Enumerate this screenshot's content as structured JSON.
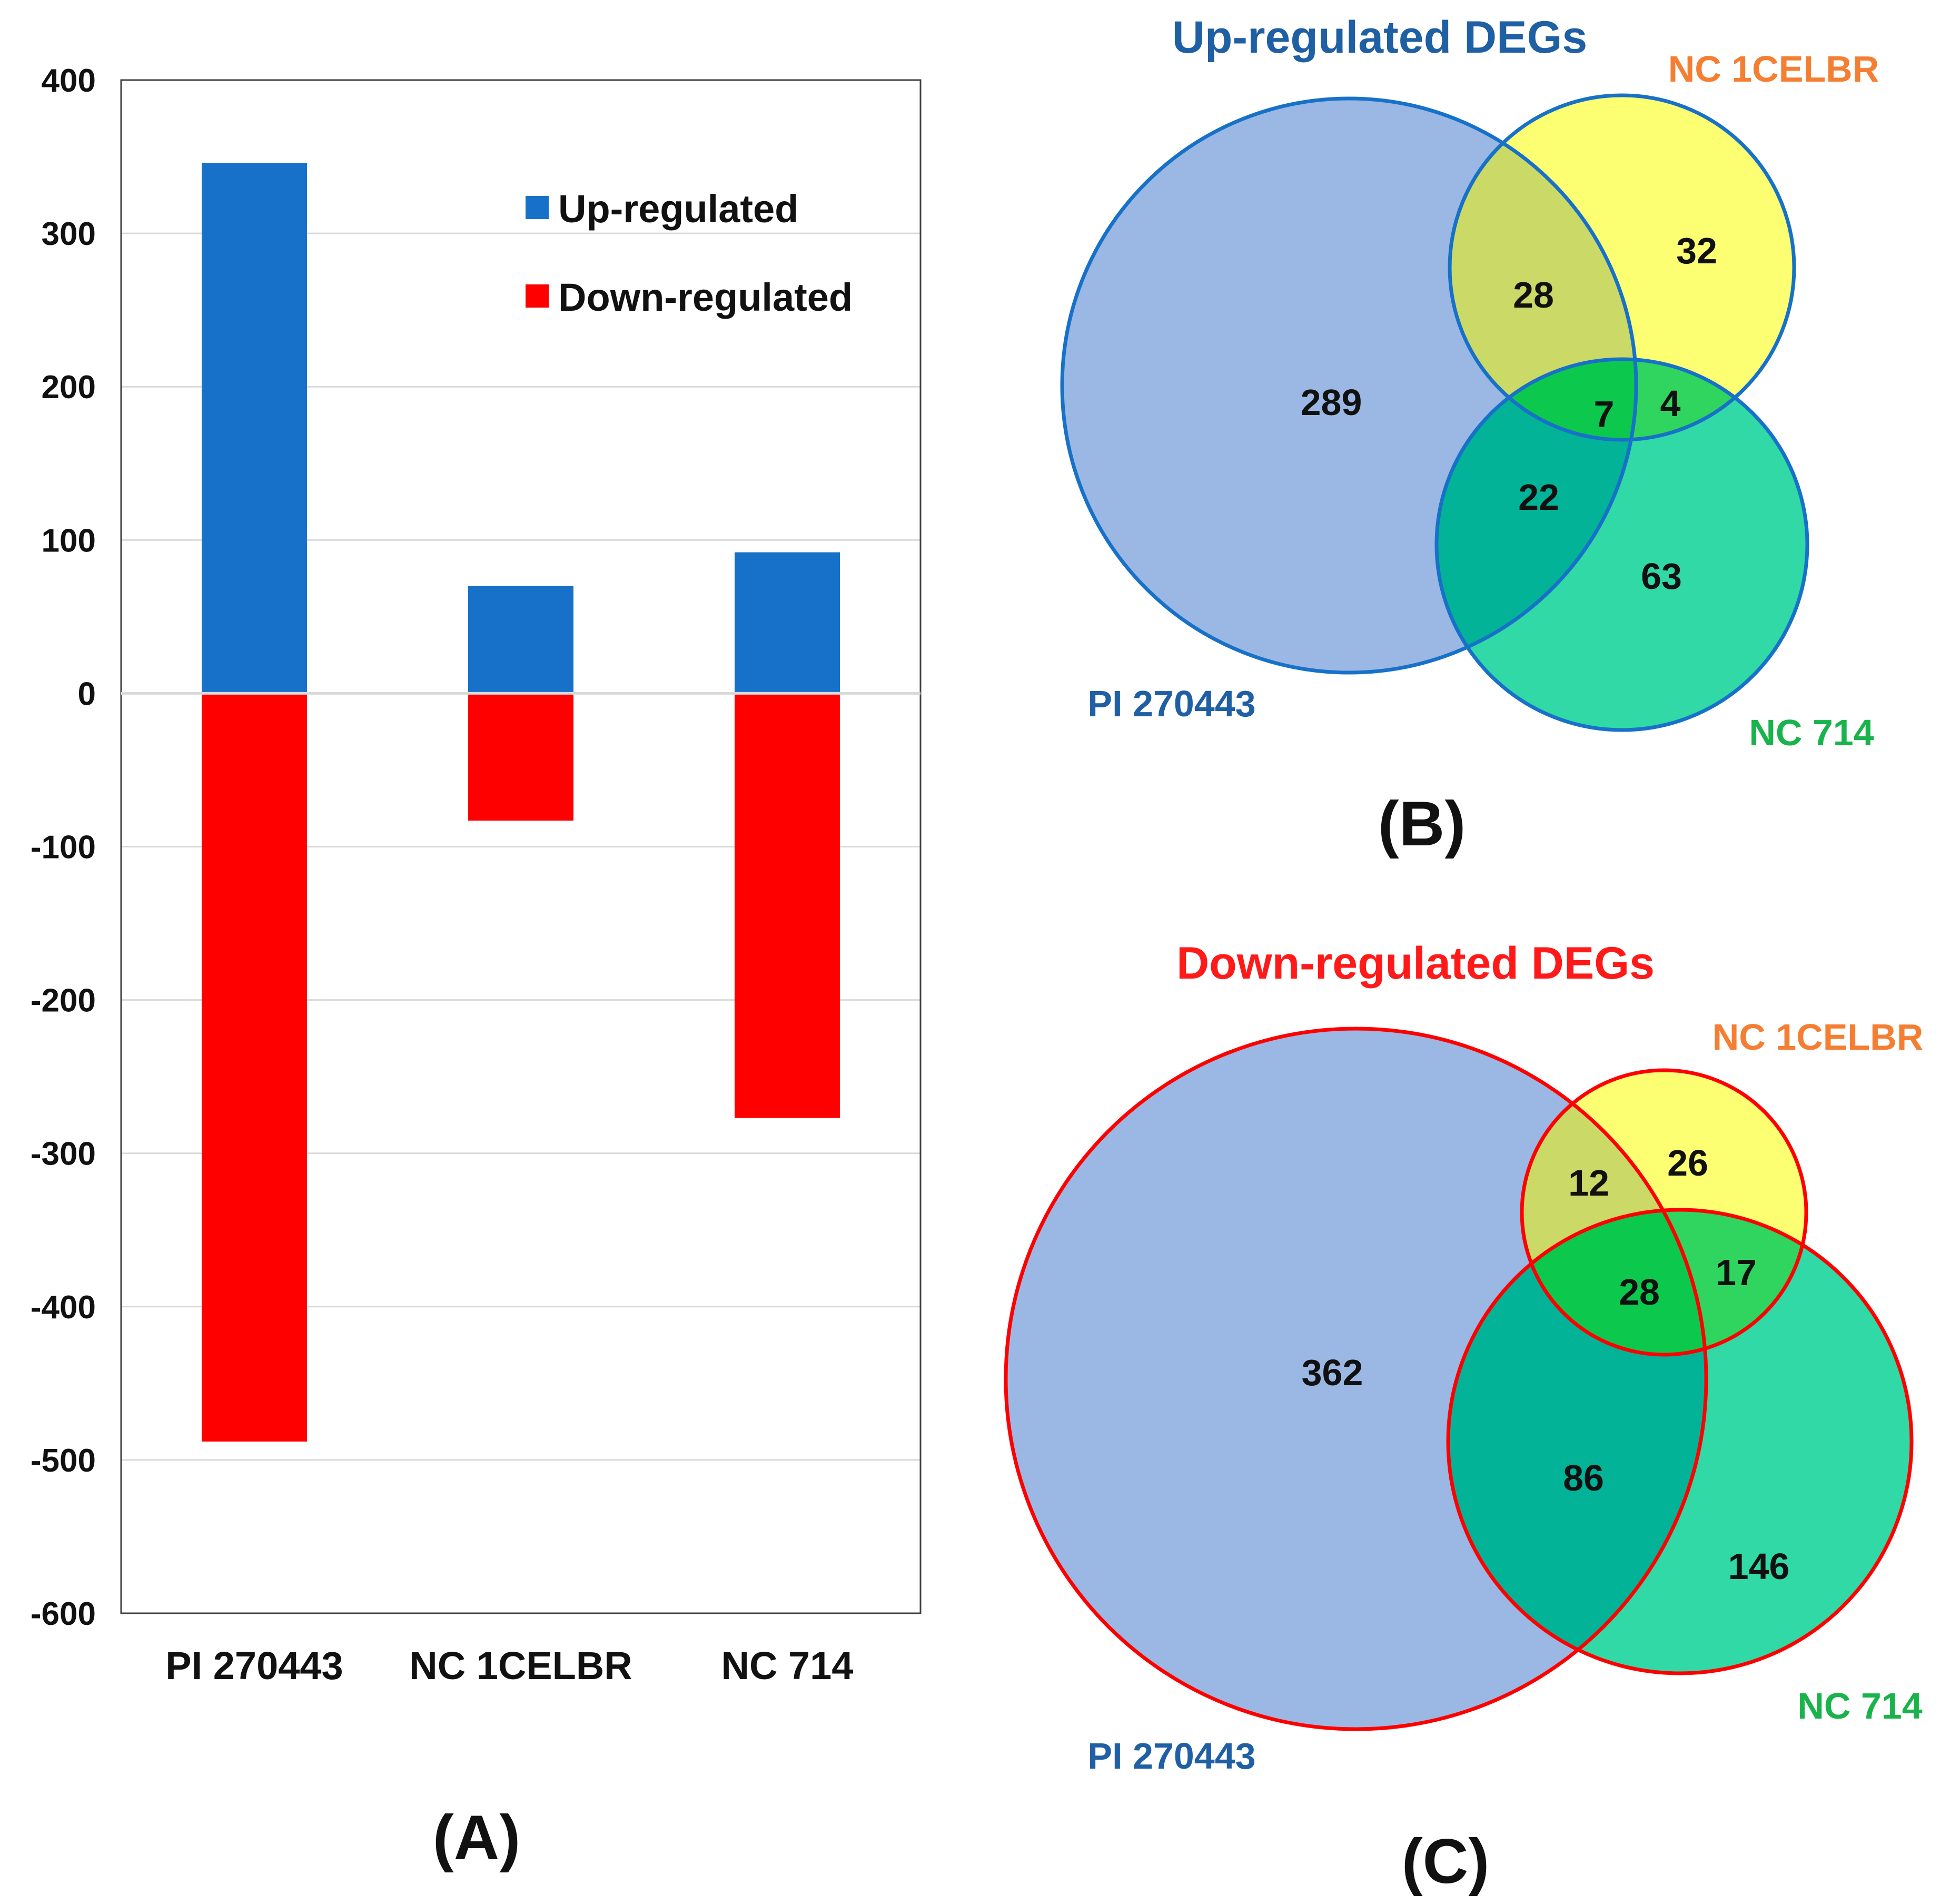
{
  "colors": {
    "up": "#1771c9",
    "down": "#ff0000",
    "grid": "#d9d9d9",
    "axis": "#404040",
    "blue_text": "#1f5fa3",
    "red_text": "#ff1a1a",
    "orange_text": "#f47e32",
    "green_text": "#19b34b",
    "venn_pi": "#9ab8e3",
    "venn_nc1": "#fdff73",
    "venn_nc714": "#30d9a6",
    "venn_pi_nc1": "#cbd966",
    "venn_pi_nc714": "#03b397",
    "venn_nc1_nc714": "#2fd55e",
    "venn_all": "#0cc94d"
  },
  "chart_data": [
    {
      "id": "A",
      "type": "bar",
      "stacked": true,
      "panel_label": "(A)",
      "categories": [
        "PI 270443",
        "NC 1CELBR",
        "NC 714"
      ],
      "series": [
        {
          "name": "Up-regulated",
          "values": [
            346,
            70,
            92
          ]
        },
        {
          "name": "Down-regulated",
          "values": [
            -488,
            -83,
            -277
          ]
        }
      ],
      "ylim": [
        -600,
        400
      ],
      "yticks": [
        "400",
        "300",
        "200",
        "100",
        "0",
        "-100",
        "-200",
        "-300",
        "-400",
        "-500",
        "-600"
      ],
      "ytick_values": [
        400,
        300,
        200,
        100,
        0,
        -100,
        -200,
        -300,
        -400,
        -500,
        -600
      ],
      "legend": [
        "Up-regulated",
        "Down-regulated"
      ],
      "legend_position": "top-right",
      "grid": true,
      "title": "",
      "xlabel": "",
      "ylabel": ""
    },
    {
      "id": "B",
      "type": "venn",
      "panel_label": "(B)",
      "title": "Up-regulated DEGs",
      "sets": [
        "PI 270443",
        "NC 1CELBR",
        "NC 714"
      ],
      "regions": {
        "pi_only": "289",
        "nc1_only": "32",
        "nc714_only": "63",
        "pi_nc1": "28",
        "pi_nc714": "22",
        "nc1_nc714": "4",
        "all": "7"
      }
    },
    {
      "id": "C",
      "type": "venn",
      "panel_label": "(C)",
      "title": "Down-regulated DEGs",
      "sets": [
        "PI 270443",
        "NC 1CELBR",
        "NC 714"
      ],
      "regions": {
        "pi_only": "362",
        "nc1_only": "26",
        "nc714_only": "146",
        "pi_nc1": "12",
        "pi_nc714": "86",
        "nc1_nc714": "17",
        "all": "28"
      }
    }
  ]
}
